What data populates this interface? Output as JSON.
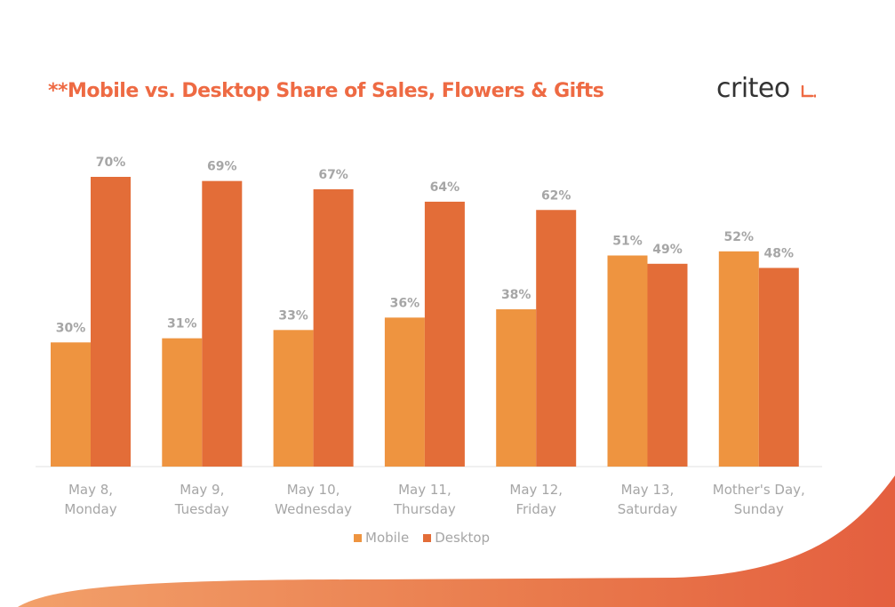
{
  "title": "**Mobile vs. Desktop Share of Sales, Flowers & Gifts",
  "logo_text": "criteo",
  "colors": {
    "mobile": "#ee9440",
    "desktop": "#e36d38",
    "title": "#ee6a43",
    "labels": "#a6a6a6",
    "swoosh": "#e8764a"
  },
  "chart_data": {
    "type": "bar",
    "title": "**Mobile vs. Desktop Share of Sales, Flowers & Gifts",
    "categories": [
      [
        "May 8,",
        "Monday"
      ],
      [
        "May 9,",
        "Tuesday"
      ],
      [
        "May 10,",
        "Wednesday"
      ],
      [
        "May 11,",
        "Thursday"
      ],
      [
        "May 12,",
        "Friday"
      ],
      [
        "May 13,",
        "Saturday"
      ],
      [
        "Mother's Day,",
        "Sunday"
      ]
    ],
    "series": [
      {
        "name": "Mobile",
        "values": [
          30,
          31,
          33,
          36,
          38,
          51,
          52
        ],
        "labels": [
          "30%",
          "31%",
          "33%",
          "36%",
          "38%",
          "51%",
          "52%"
        ]
      },
      {
        "name": "Desktop",
        "values": [
          70,
          69,
          67,
          64,
          62,
          49,
          48
        ],
        "labels": [
          "70%",
          "69%",
          "67%",
          "64%",
          "62%",
          "49%",
          "48%"
        ]
      }
    ],
    "ylim": [
      0,
      70
    ],
    "grid": false,
    "legend": "bottom-center"
  }
}
